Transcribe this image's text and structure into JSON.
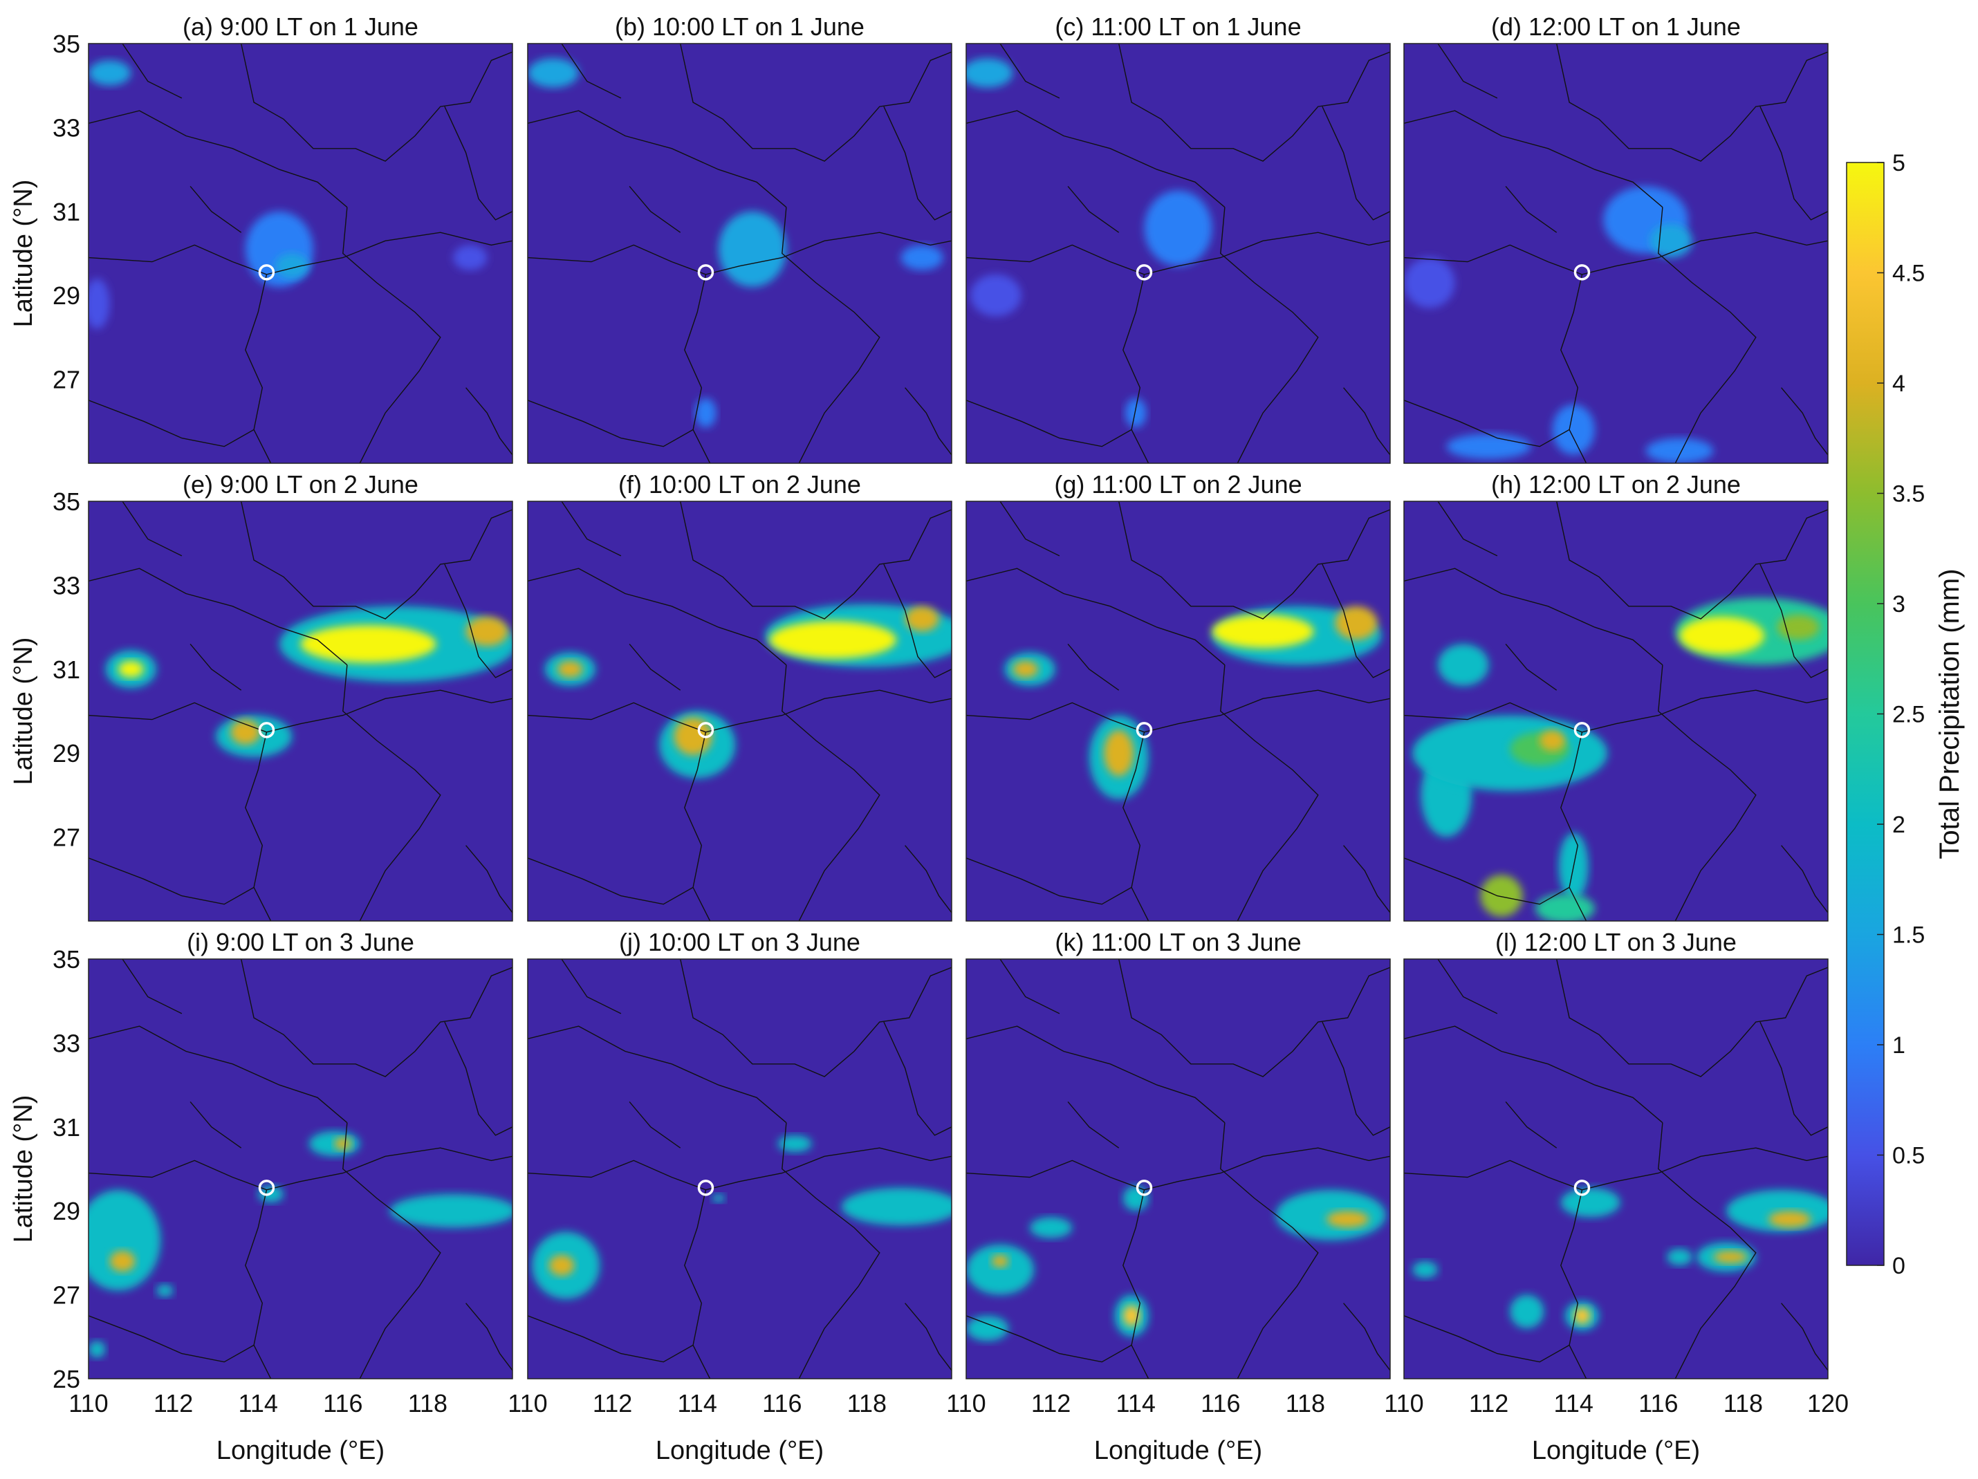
{
  "figure": {
    "xlabel": "Longitude (°E)",
    "ylabel": "Latitude (°N)",
    "colorbar_label": "Total Precipitation (mm)"
  },
  "chart_data": {
    "type": "heatmap",
    "xlim": [
      110,
      120
    ],
    "ylim": [
      25,
      35
    ],
    "x_ticks": [
      "110",
      "112",
      "114",
      "116",
      "118"
    ],
    "x_ticks_last_col": [
      "110",
      "112",
      "114",
      "116",
      "118",
      "120"
    ],
    "y_ticks": [
      "25",
      "27",
      "29",
      "31",
      "33",
      "35"
    ],
    "colorbar": {
      "min": 0,
      "max": 5,
      "ticks": [
        "0",
        "0.5",
        "1",
        "1.5",
        "2",
        "2.5",
        "3",
        "3.5",
        "4",
        "4.5",
        "5"
      ],
      "colors": [
        "#3f26a6",
        "#4651e6",
        "#2c7ff6",
        "#1aa5e0",
        "#0cbcc6",
        "#24c99b",
        "#49c45c",
        "#8dbd2e",
        "#dcb122",
        "#fbc632",
        "#f6f70f"
      ]
    },
    "site_marker": {
      "lon": 114.2,
      "lat": 29.55
    },
    "panels": [
      {
        "title": "(a) 9:00 LT on 1 June",
        "blobs": [
          {
            "lon": 114.5,
            "lat": 30.1,
            "rx": 0.8,
            "ry": 0.9,
            "v": 1.2
          },
          {
            "lon": 114.8,
            "lat": 29.7,
            "rx": 0.4,
            "ry": 0.3,
            "v": 1.6
          },
          {
            "lon": 110.2,
            "lat": 28.8,
            "rx": 0.3,
            "ry": 0.6,
            "v": 0.7
          },
          {
            "lon": 119.0,
            "lat": 29.9,
            "rx": 0.4,
            "ry": 0.3,
            "v": 0.7
          },
          {
            "lon": 110.5,
            "lat": 34.3,
            "rx": 0.5,
            "ry": 0.3,
            "v": 1.4
          }
        ]
      },
      {
        "title": "(b) 10:00 LT on 1 June",
        "blobs": [
          {
            "lon": 115.3,
            "lat": 30.1,
            "rx": 0.8,
            "ry": 0.9,
            "v": 1.3
          },
          {
            "lon": 114.2,
            "lat": 26.2,
            "rx": 0.25,
            "ry": 0.35,
            "v": 1.1
          },
          {
            "lon": 119.3,
            "lat": 29.9,
            "rx": 0.5,
            "ry": 0.3,
            "v": 0.9
          },
          {
            "lon": 110.6,
            "lat": 34.3,
            "rx": 0.6,
            "ry": 0.35,
            "v": 1.5
          }
        ]
      },
      {
        "title": "(c) 11:00 LT on 1 June",
        "blobs": [
          {
            "lon": 115.0,
            "lat": 30.6,
            "rx": 0.8,
            "ry": 0.9,
            "v": 1.2
          },
          {
            "lon": 114.0,
            "lat": 26.2,
            "rx": 0.25,
            "ry": 0.35,
            "v": 1.1
          },
          {
            "lon": 110.7,
            "lat": 29.0,
            "rx": 0.6,
            "ry": 0.5,
            "v": 0.6
          },
          {
            "lon": 110.5,
            "lat": 34.3,
            "rx": 0.6,
            "ry": 0.35,
            "v": 1.4
          }
        ]
      },
      {
        "title": "(d) 12:00 LT on 1 June",
        "blobs": [
          {
            "lon": 115.7,
            "lat": 30.8,
            "rx": 1.0,
            "ry": 0.8,
            "v": 1.0
          },
          {
            "lon": 116.3,
            "lat": 30.3,
            "rx": 0.5,
            "ry": 0.4,
            "v": 1.3
          },
          {
            "lon": 110.6,
            "lat": 29.3,
            "rx": 0.6,
            "ry": 0.6,
            "v": 0.6
          },
          {
            "lon": 114.0,
            "lat": 25.8,
            "rx": 0.5,
            "ry": 0.6,
            "v": 1.1
          },
          {
            "lon": 112.0,
            "lat": 25.4,
            "rx": 1.0,
            "ry": 0.3,
            "v": 0.8
          },
          {
            "lon": 116.5,
            "lat": 25.3,
            "rx": 0.8,
            "ry": 0.3,
            "v": 0.8
          }
        ]
      },
      {
        "title": "(e) 9:00 LT on 2 June",
        "blobs": [
          {
            "lon": 117.3,
            "lat": 31.6,
            "rx": 2.8,
            "ry": 0.9,
            "v": 2.2
          },
          {
            "lon": 116.6,
            "lat": 31.6,
            "rx": 1.6,
            "ry": 0.45,
            "v": 4.9
          },
          {
            "lon": 119.4,
            "lat": 31.9,
            "rx": 0.5,
            "ry": 0.35,
            "v": 4.0
          },
          {
            "lon": 111.0,
            "lat": 31.0,
            "rx": 0.6,
            "ry": 0.45,
            "v": 2.2
          },
          {
            "lon": 111.0,
            "lat": 31.0,
            "rx": 0.3,
            "ry": 0.2,
            "v": 4.8
          },
          {
            "lon": 113.9,
            "lat": 29.4,
            "rx": 0.9,
            "ry": 0.5,
            "v": 2.2
          },
          {
            "lon": 113.7,
            "lat": 29.5,
            "rx": 0.35,
            "ry": 0.3,
            "v": 4.1
          }
        ]
      },
      {
        "title": "(f) 10:00 LT on 2 June",
        "blobs": [
          {
            "lon": 118.0,
            "lat": 31.8,
            "rx": 2.4,
            "ry": 0.75,
            "v": 2.2
          },
          {
            "lon": 117.2,
            "lat": 31.7,
            "rx": 1.5,
            "ry": 0.45,
            "v": 4.9
          },
          {
            "lon": 119.3,
            "lat": 32.2,
            "rx": 0.4,
            "ry": 0.3,
            "v": 4.0
          },
          {
            "lon": 111.0,
            "lat": 31.0,
            "rx": 0.6,
            "ry": 0.4,
            "v": 2.2
          },
          {
            "lon": 111.0,
            "lat": 31.0,
            "rx": 0.3,
            "ry": 0.2,
            "v": 4.2
          },
          {
            "lon": 114.0,
            "lat": 29.2,
            "rx": 0.9,
            "ry": 0.8,
            "v": 2.2
          },
          {
            "lon": 113.9,
            "lat": 29.4,
            "rx": 0.45,
            "ry": 0.45,
            "v": 4.1
          }
        ]
      },
      {
        "title": "(g) 11:00 LT on 2 June",
        "blobs": [
          {
            "lon": 117.8,
            "lat": 31.8,
            "rx": 2.0,
            "ry": 0.7,
            "v": 2.2
          },
          {
            "lon": 117.0,
            "lat": 31.9,
            "rx": 1.2,
            "ry": 0.4,
            "v": 4.9
          },
          {
            "lon": 119.2,
            "lat": 32.1,
            "rx": 0.5,
            "ry": 0.4,
            "v": 4.1
          },
          {
            "lon": 111.5,
            "lat": 31.0,
            "rx": 0.6,
            "ry": 0.4,
            "v": 2.2
          },
          {
            "lon": 111.4,
            "lat": 31.0,
            "rx": 0.3,
            "ry": 0.2,
            "v": 4.1
          },
          {
            "lon": 113.6,
            "lat": 28.9,
            "rx": 0.7,
            "ry": 1.0,
            "v": 2.2
          },
          {
            "lon": 113.6,
            "lat": 29.0,
            "rx": 0.35,
            "ry": 0.55,
            "v": 4.1
          }
        ]
      },
      {
        "title": "(h) 12:00 LT on 2 June",
        "blobs": [
          {
            "lon": 118.4,
            "lat": 31.9,
            "rx": 2.0,
            "ry": 0.8,
            "v": 2.6
          },
          {
            "lon": 117.5,
            "lat": 31.8,
            "rx": 1.0,
            "ry": 0.45,
            "v": 4.9
          },
          {
            "lon": 119.3,
            "lat": 32.0,
            "rx": 0.5,
            "ry": 0.3,
            "v": 3.3
          },
          {
            "lon": 111.4,
            "lat": 31.1,
            "rx": 0.6,
            "ry": 0.5,
            "v": 1.8
          },
          {
            "lon": 112.5,
            "lat": 29.0,
            "rx": 2.3,
            "ry": 0.9,
            "v": 2.0
          },
          {
            "lon": 113.2,
            "lat": 29.1,
            "rx": 0.7,
            "ry": 0.4,
            "v": 3.2
          },
          {
            "lon": 113.5,
            "lat": 29.3,
            "rx": 0.3,
            "ry": 0.25,
            "v": 4.1
          },
          {
            "lon": 111.0,
            "lat": 28.0,
            "rx": 0.6,
            "ry": 1.0,
            "v": 1.9
          },
          {
            "lon": 114.0,
            "lat": 26.3,
            "rx": 0.35,
            "ry": 0.8,
            "v": 2.2
          },
          {
            "lon": 112.3,
            "lat": 25.6,
            "rx": 0.5,
            "ry": 0.5,
            "v": 3.6
          },
          {
            "lon": 113.8,
            "lat": 25.3,
            "rx": 0.7,
            "ry": 0.35,
            "v": 2.6
          }
        ]
      },
      {
        "title": "(i) 9:00 LT on 3 June",
        "blobs": [
          {
            "lon": 110.7,
            "lat": 28.3,
            "rx": 1.0,
            "ry": 1.2,
            "v": 2.2
          },
          {
            "lon": 110.8,
            "lat": 27.8,
            "rx": 0.3,
            "ry": 0.25,
            "v": 4.2
          },
          {
            "lon": 115.8,
            "lat": 30.6,
            "rx": 0.6,
            "ry": 0.3,
            "v": 2.2
          },
          {
            "lon": 116.0,
            "lat": 30.6,
            "rx": 0.2,
            "ry": 0.15,
            "v": 4.2
          },
          {
            "lon": 118.6,
            "lat": 29.0,
            "rx": 1.5,
            "ry": 0.4,
            "v": 2.2
          },
          {
            "lon": 114.3,
            "lat": 29.4,
            "rx": 0.3,
            "ry": 0.2,
            "v": 2.2
          },
          {
            "lon": 111.8,
            "lat": 27.1,
            "rx": 0.2,
            "ry": 0.15,
            "v": 2.2
          },
          {
            "lon": 110.2,
            "lat": 25.7,
            "rx": 0.2,
            "ry": 0.2,
            "v": 2.2
          }
        ]
      },
      {
        "title": "(j) 10:00 LT on 3 June",
        "blobs": [
          {
            "lon": 110.9,
            "lat": 27.7,
            "rx": 0.8,
            "ry": 0.8,
            "v": 2.2
          },
          {
            "lon": 110.8,
            "lat": 27.7,
            "rx": 0.3,
            "ry": 0.25,
            "v": 4.2
          },
          {
            "lon": 118.8,
            "lat": 29.1,
            "rx": 1.4,
            "ry": 0.45,
            "v": 2.2
          },
          {
            "lon": 116.3,
            "lat": 30.6,
            "rx": 0.4,
            "ry": 0.2,
            "v": 2.2
          },
          {
            "lon": 114.5,
            "lat": 29.3,
            "rx": 0.15,
            "ry": 0.1,
            "v": 2.2
          }
        ]
      },
      {
        "title": "(k) 11:00 LT on 3 June",
        "blobs": [
          {
            "lon": 118.6,
            "lat": 28.9,
            "rx": 1.3,
            "ry": 0.6,
            "v": 2.2
          },
          {
            "lon": 119.0,
            "lat": 28.8,
            "rx": 0.5,
            "ry": 0.2,
            "v": 4.1
          },
          {
            "lon": 110.8,
            "lat": 27.6,
            "rx": 0.8,
            "ry": 0.6,
            "v": 2.2
          },
          {
            "lon": 110.8,
            "lat": 27.8,
            "rx": 0.2,
            "ry": 0.15,
            "v": 4.1
          },
          {
            "lon": 113.9,
            "lat": 26.5,
            "rx": 0.4,
            "ry": 0.5,
            "v": 2.2
          },
          {
            "lon": 113.9,
            "lat": 26.5,
            "rx": 0.2,
            "ry": 0.25,
            "v": 4.3
          },
          {
            "lon": 114.0,
            "lat": 29.3,
            "rx": 0.3,
            "ry": 0.3,
            "v": 2.2
          },
          {
            "lon": 112.0,
            "lat": 28.6,
            "rx": 0.5,
            "ry": 0.25,
            "v": 2.2
          },
          {
            "lon": 110.5,
            "lat": 26.2,
            "rx": 0.5,
            "ry": 0.3,
            "v": 2.2
          }
        ]
      },
      {
        "title": "(l) 12:00 LT on 3 June",
        "blobs": [
          {
            "lon": 118.9,
            "lat": 29.0,
            "rx": 1.3,
            "ry": 0.5,
            "v": 2.2
          },
          {
            "lon": 119.1,
            "lat": 28.8,
            "rx": 0.5,
            "ry": 0.2,
            "v": 4.1
          },
          {
            "lon": 117.6,
            "lat": 27.9,
            "rx": 0.7,
            "ry": 0.35,
            "v": 2.2
          },
          {
            "lon": 117.7,
            "lat": 27.9,
            "rx": 0.4,
            "ry": 0.15,
            "v": 4.1
          },
          {
            "lon": 114.2,
            "lat": 26.5,
            "rx": 0.4,
            "ry": 0.35,
            "v": 2.2
          },
          {
            "lon": 114.2,
            "lat": 26.5,
            "rx": 0.2,
            "ry": 0.2,
            "v": 4.3
          },
          {
            "lon": 114.4,
            "lat": 29.2,
            "rx": 0.7,
            "ry": 0.35,
            "v": 2.2
          },
          {
            "lon": 112.9,
            "lat": 26.6,
            "rx": 0.4,
            "ry": 0.4,
            "v": 2.2
          },
          {
            "lon": 110.5,
            "lat": 27.6,
            "rx": 0.3,
            "ry": 0.2,
            "v": 2.2
          },
          {
            "lon": 116.5,
            "lat": 27.9,
            "rx": 0.3,
            "ry": 0.2,
            "v": 2.2
          }
        ]
      }
    ]
  }
}
